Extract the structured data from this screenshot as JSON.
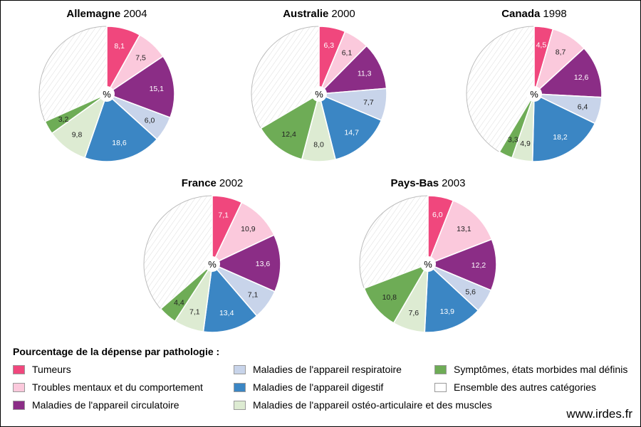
{
  "legend": {
    "title": "Pourcentage de la dépense par pathologie :",
    "items": [
      {
        "label": "Tumeurs",
        "color": "#f0477d"
      },
      {
        "label": "Troubles mentaux et du comportement",
        "color": "#fbc9dc"
      },
      {
        "label": "Maladies de l'appareil circulatoire",
        "color": "#8b2d86"
      },
      {
        "label": "Maladies de l'appareil respiratoire",
        "color": "#c8d4ea"
      },
      {
        "label": "Maladies de l'appareil digestif",
        "color": "#3b86c4"
      },
      {
        "label": "Maladies de l'appareil ostéo-articulaire et des muscles",
        "color": "#ddebd2"
      },
      {
        "label": "Symptômes, états morbides mal définis",
        "color": "#6eac56"
      },
      {
        "label": "Ensemble des autres catégories",
        "color": "#ffffff"
      }
    ]
  },
  "source": "www.irdes.fr",
  "chart_data": [
    {
      "type": "pie",
      "title_country": "Allemagne",
      "title_year": "2004",
      "center_label": "%",
      "categories": [
        "Tumeurs",
        "Troubles mentaux et du comportement",
        "Maladies de l'appareil circulatoire",
        "Maladies de l'appareil respiratoire",
        "Maladies de l'appareil digestif",
        "Maladies de l'appareil ostéo-articulaire et des muscles",
        "Symptômes, états morbides mal définis"
      ],
      "values": [
        8.1,
        7.5,
        15.1,
        6.0,
        18.6,
        9.8,
        3.2
      ],
      "labels": [
        "8,1",
        "7,5",
        "15,1",
        "6,0",
        "18,6",
        "9,8",
        "3,2"
      ]
    },
    {
      "type": "pie",
      "title_country": "Australie",
      "title_year": "2000",
      "center_label": "%",
      "categories": [
        "Tumeurs",
        "Troubles mentaux et du comportement",
        "Maladies de l'appareil circulatoire",
        "Maladies de l'appareil respiratoire",
        "Maladies de l'appareil digestif",
        "Maladies de l'appareil ostéo-articulaire et des muscles",
        "Symptômes, états morbides mal définis"
      ],
      "values": [
        6.3,
        6.1,
        11.3,
        7.7,
        14.7,
        8.0,
        12.4
      ],
      "labels": [
        "6,3",
        "6,1",
        "11,3",
        "7,7",
        "14,7",
        "8,0",
        "12,4"
      ]
    },
    {
      "type": "pie",
      "title_country": "Canada",
      "title_year": "1998",
      "center_label": "%",
      "categories": [
        "Tumeurs",
        "Troubles mentaux et du comportement",
        "Maladies de l'appareil circulatoire",
        "Maladies de l'appareil respiratoire",
        "Maladies de l'appareil digestif",
        "Maladies de l'appareil ostéo-articulaire et des muscles",
        "Symptômes, états morbides mal définis"
      ],
      "values": [
        4.5,
        8.7,
        12.6,
        6.4,
        18.2,
        4.9,
        3.3
      ],
      "labels": [
        "4,5",
        "8,7",
        "12,6",
        "6,4",
        "18,2",
        "4,9",
        "3,3"
      ]
    },
    {
      "type": "pie",
      "title_country": "France",
      "title_year": "2002",
      "center_label": "%",
      "categories": [
        "Tumeurs",
        "Troubles mentaux et du comportement",
        "Maladies de l'appareil circulatoire",
        "Maladies de l'appareil respiratoire",
        "Maladies de l'appareil digestif",
        "Maladies de l'appareil ostéo-articulaire et des muscles",
        "Symptômes, états morbides mal définis"
      ],
      "values": [
        7.1,
        10.9,
        13.6,
        7.1,
        13.4,
        7.1,
        4.4
      ],
      "labels": [
        "7,1",
        "10,9",
        "13,6",
        "7,1",
        "13,4",
        "7,1",
        "4,4"
      ]
    },
    {
      "type": "pie",
      "title_country": "Pays-Bas",
      "title_year": "2003",
      "center_label": "%",
      "categories": [
        "Tumeurs",
        "Troubles mentaux et du comportement",
        "Maladies de l'appareil circulatoire",
        "Maladies de l'appareil respiratoire",
        "Maladies de l'appareil digestif",
        "Maladies de l'appareil ostéo-articulaire et des muscles",
        "Symptômes, états morbides mal définis"
      ],
      "values": [
        6.0,
        13.1,
        12.2,
        5.6,
        13.9,
        7.6,
        10.8
      ],
      "labels": [
        "6,0",
        "13,1",
        "12,2",
        "5,6",
        "13,9",
        "7,6",
        "10,8"
      ]
    }
  ]
}
